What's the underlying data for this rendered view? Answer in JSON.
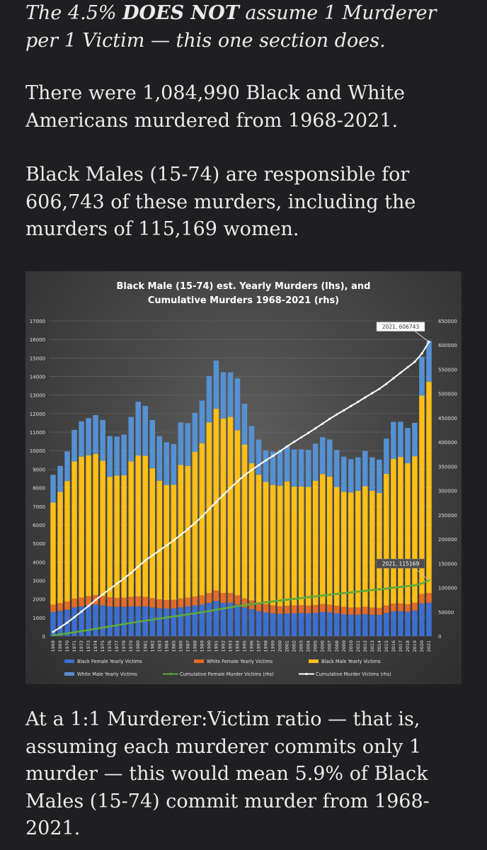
{
  "article": {
    "intro_pre": "The 4.5% ",
    "intro_bold": "DOES NOT",
    "intro_post": " assume 1 Murderer per 1 Victim — this one section does.",
    "para1": "There were 1,084,990 Black and White Americans murdered from 1968-2021.",
    "para2": "Black Males (15-74) are responsible for 606,743 of these murders, including the murders of 115,169 women.",
    "para3": "At a 1:1 Murderer:Victim ratio — that is, assuming each murderer commits only 1 murder — this would mean 5.9% of Black Males (15-74) commit murder from 1968-2021."
  },
  "chart_data": {
    "type": "bar",
    "title_line1": "Black Male (15-74) est. Yearly Murders (lhs), and",
    "title_line2": "Cumulative Murders 1968-2021 (rhs)",
    "colors": {
      "black_female": "#3d6fd0",
      "white_female": "#e46b28",
      "black_male": "#ffbf18",
      "white_male": "#5691d1",
      "cum_female": "#5aab3c",
      "cum_total": "#ffffff"
    },
    "categories": [
      "1968",
      "1969",
      "1970",
      "1971",
      "1972",
      "1973",
      "1974",
      "1975",
      "1976",
      "1977",
      "1978",
      "1979",
      "1980",
      "1981",
      "1982",
      "1983",
      "1984",
      "1985",
      "1986",
      "1987",
      "1988",
      "1989",
      "1990",
      "1991",
      "1992",
      "1993",
      "1994",
      "1995",
      "1996",
      "1997",
      "1998",
      "1999",
      "2000",
      "2001",
      "2002",
      "2003",
      "2004",
      "2005",
      "2006",
      "2007",
      "2008",
      "2009",
      "2010",
      "2011",
      "2012",
      "2013",
      "2014",
      "2015",
      "2016",
      "2017",
      "2018",
      "2019",
      "2020",
      "2021"
    ],
    "series": [
      {
        "name": "Black Female Yearly Victims",
        "values": [
          1300,
          1360,
          1420,
          1550,
          1600,
          1650,
          1700,
          1650,
          1600,
          1580,
          1580,
          1600,
          1600,
          1600,
          1550,
          1500,
          1480,
          1500,
          1550,
          1600,
          1650,
          1700,
          1800,
          1900,
          1800,
          1800,
          1700,
          1550,
          1450,
          1350,
          1280,
          1230,
          1200,
          1220,
          1230,
          1250,
          1230,
          1260,
          1300,
          1280,
          1230,
          1180,
          1150,
          1150,
          1180,
          1150,
          1140,
          1250,
          1330,
          1340,
          1310,
          1380,
          1750,
          1800
        ]
      },
      {
        "name": "White Female Yearly Victims",
        "values": [
          400,
          420,
          440,
          470,
          480,
          500,
          520,
          510,
          490,
          480,
          490,
          520,
          540,
          520,
          500,
          480,
          470,
          460,
          480,
          480,
          490,
          500,
          520,
          560,
          530,
          520,
          500,
          480,
          470,
          450,
          440,
          420,
          410,
          420,
          430,
          420,
          410,
          420,
          430,
          420,
          410,
          400,
          390,
          390,
          400,
          390,
          380,
          400,
          420,
          420,
          410,
          420,
          520,
          520
        ]
      },
      {
        "name": "Black Male Yearly Victims",
        "values": [
          5500,
          6000,
          6500,
          7400,
          7600,
          7600,
          7600,
          7300,
          6500,
          6600,
          6600,
          7300,
          7600,
          7600,
          7000,
          6400,
          6200,
          6200,
          7200,
          7100,
          7800,
          8200,
          9200,
          9800,
          9400,
          9500,
          8900,
          8300,
          7400,
          6900,
          6600,
          6500,
          6500,
          6700,
          6400,
          6400,
          6400,
          6700,
          7000,
          6900,
          6400,
          6200,
          6200,
          6300,
          6500,
          6300,
          6200,
          7100,
          7800,
          7900,
          7600,
          7900,
          10700,
          11400
        ]
      },
      {
        "name": "White Male Yearly Victims",
        "values": [
          1500,
          1400,
          1600,
          1700,
          1900,
          2000,
          2100,
          2200,
          2200,
          2100,
          2200,
          2400,
          2900,
          2700,
          2600,
          2400,
          2300,
          2200,
          2300,
          2300,
          2100,
          2300,
          2500,
          2600,
          2500,
          2400,
          2800,
          2200,
          2000,
          1900,
          1700,
          1800,
          1900,
          1900,
          2000,
          2000,
          2000,
          2000,
          2000,
          2000,
          2000,
          1900,
          1800,
          1800,
          1900,
          1800,
          1800,
          1900,
          2000,
          1900,
          1900,
          1800,
          2100,
          2200
        ]
      }
    ],
    "cumulative_female_rhs": [
      1700,
      3600,
      5600,
      7900,
      10200,
      12600,
      15000,
      17500,
      19900,
      22300,
      24700,
      27100,
      29500,
      31800,
      34000,
      36200,
      38300,
      40400,
      42500,
      44700,
      46900,
      49100,
      51600,
      54200,
      56800,
      59300,
      61700,
      63900,
      65900,
      67900,
      69800,
      71600,
      73300,
      75000,
      76700,
      78400,
      80100,
      81800,
      83500,
      85200,
      86900,
      88500,
      90100,
      91700,
      93300,
      94900,
      96400,
      98000,
      99700,
      101400,
      103100,
      104800,
      108500,
      115169
    ],
    "cumulative_total_rhs": [
      8700,
      17900,
      27800,
      39000,
      50600,
      62300,
      74400,
      86200,
      97000,
      107800,
      118700,
      130600,
      143300,
      155800,
      166400,
      176700,
      186900,
      197300,
      208800,
      220400,
      233100,
      246400,
      261800,
      276700,
      290900,
      305100,
      318900,
      331800,
      342400,
      352500,
      362300,
      371600,
      381100,
      391200,
      400700,
      409800,
      419000,
      428400,
      438100,
      447900,
      457000,
      465600,
      474300,
      483000,
      492100,
      501000,
      509800,
      520200,
      531600,
      543100,
      554300,
      565600,
      582600,
      606743
    ],
    "ylim_lhs": [
      0,
      17000
    ],
    "ylim_rhs": [
      0,
      650000
    ],
    "lhs_ticks": [
      "0",
      "1000",
      "2000",
      "3000",
      "4000",
      "5000",
      "6000",
      "7000",
      "8000",
      "9000",
      "10000",
      "11000",
      "12000",
      "13000",
      "14000",
      "15000",
      "16000",
      "17000"
    ],
    "rhs_ticks": [
      "0",
      "50000",
      "100000",
      "150000",
      "200000",
      "250000",
      "300000",
      "350000",
      "400000",
      "450000",
      "500000",
      "550000",
      "600000",
      "650000"
    ],
    "annotation_total": "2021, 606743",
    "annotation_female": "2021, 115169",
    "legend": [
      "Black Female Yearly Victims",
      "White Female Yearly Victims",
      "Black Male Yearly Victims",
      "White Male Yearly Victims",
      "Cumulative Female Murder Victims (rhs)",
      "Cumulative Murder Victims (rhs)"
    ]
  }
}
